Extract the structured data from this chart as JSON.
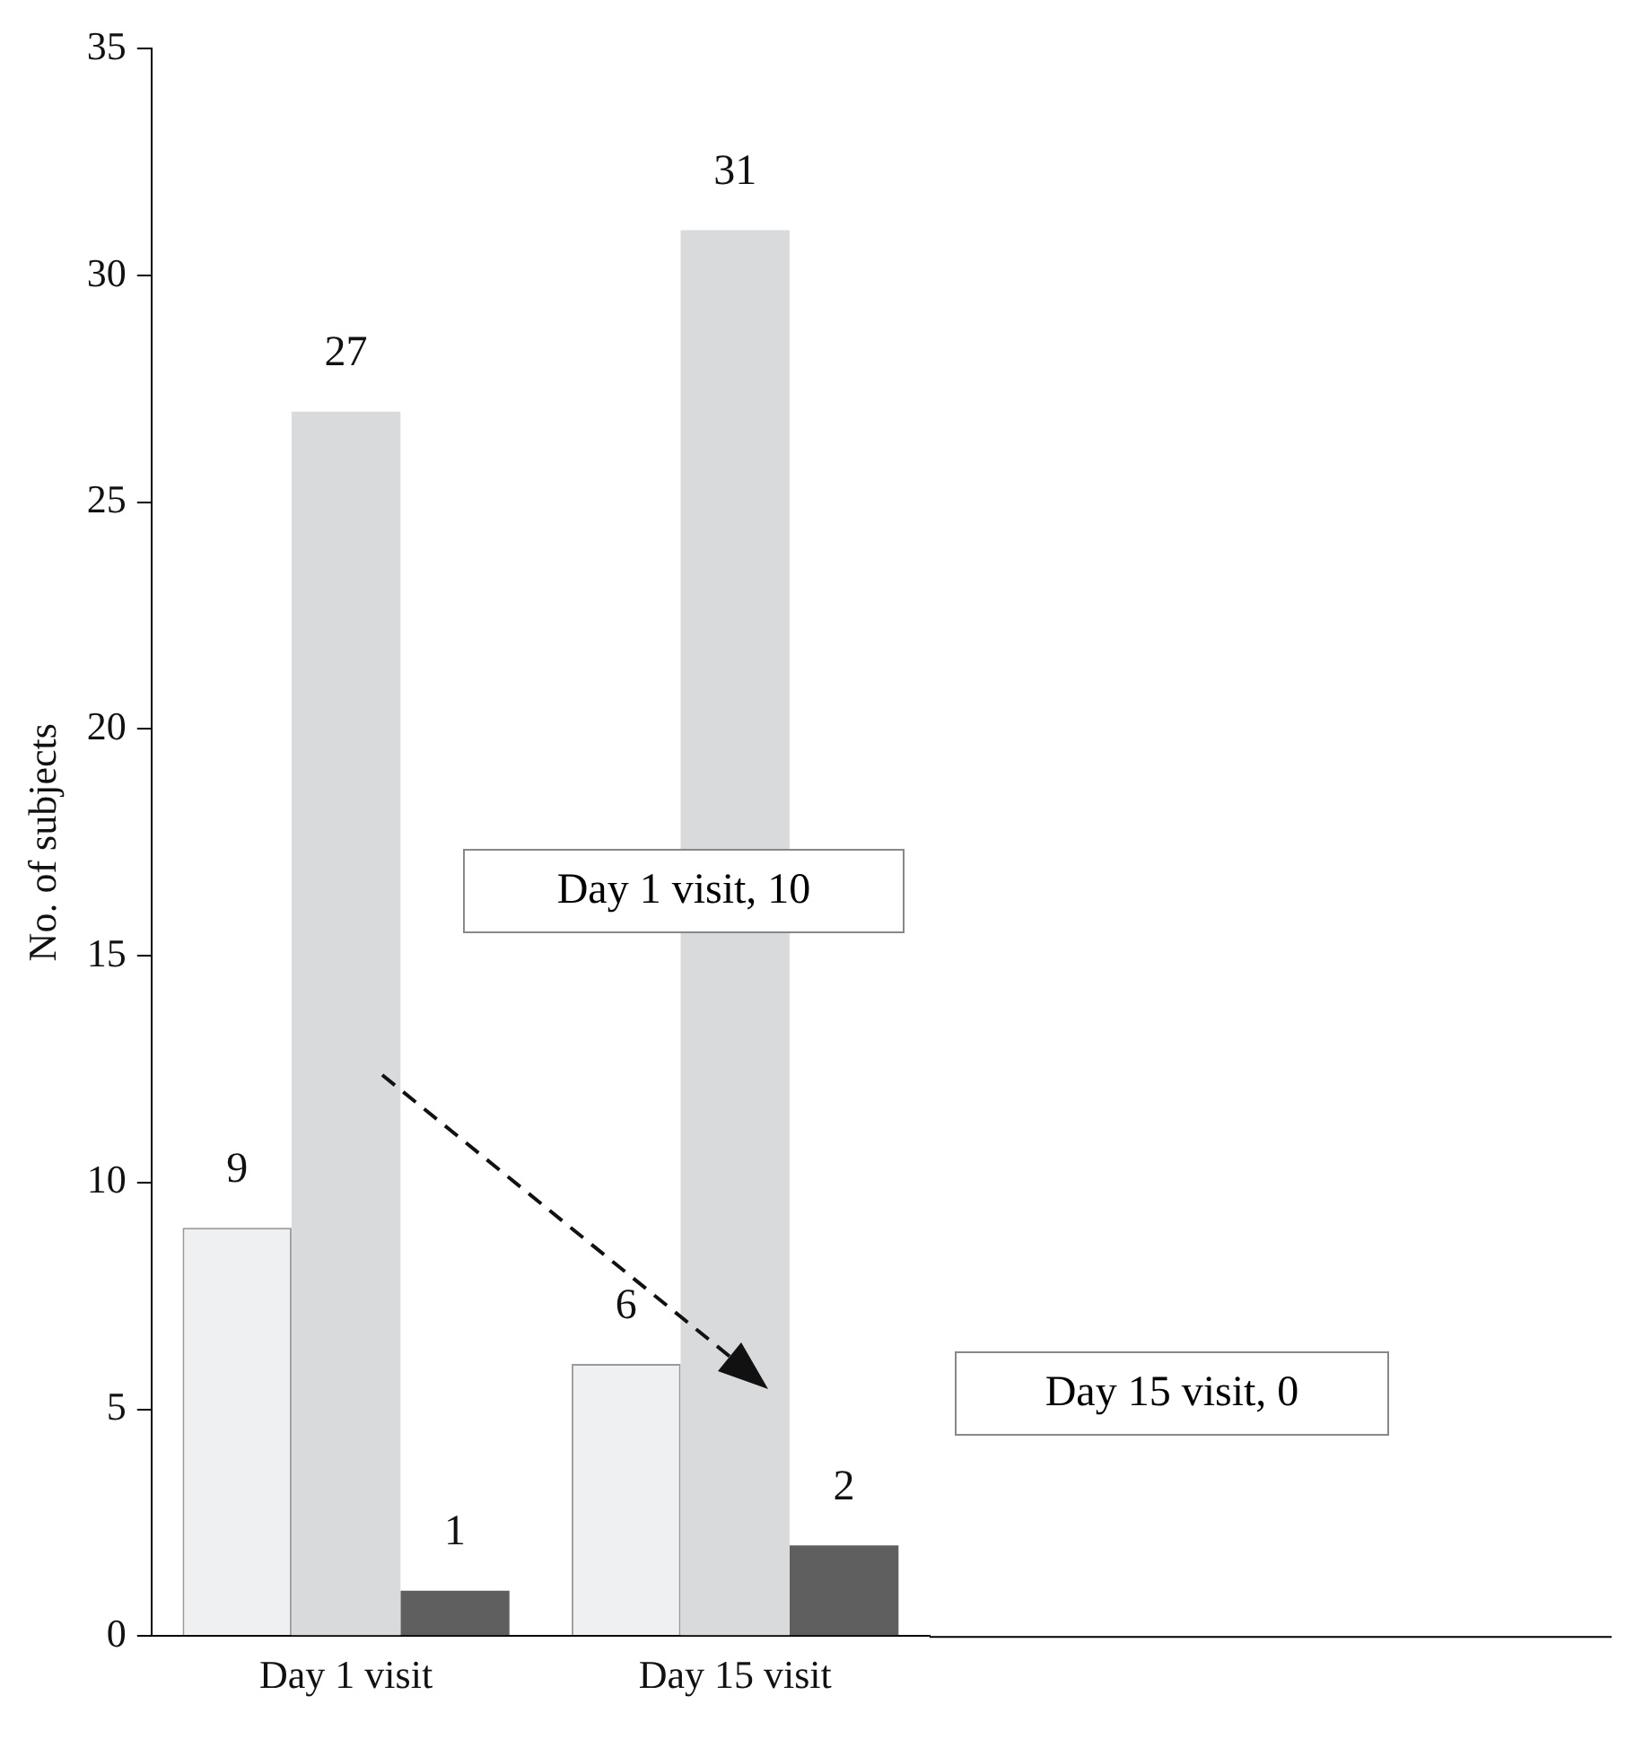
{
  "chart_data": {
    "type": "bar",
    "ylabel": "No. of subjects",
    "categories": [
      "Day 1 visit",
      "Day 15 visit"
    ],
    "series": [
      {
        "color": "#eff0f2",
        "values": [
          9,
          6
        ]
      },
      {
        "color": "#d9dadc",
        "values": [
          27,
          31
        ]
      },
      {
        "color": "#5f5f5f",
        "values": [
          1,
          2
        ]
      }
    ],
    "ylim": [
      0,
      35
    ],
    "yticks": [
      0,
      5,
      10,
      15,
      20,
      25,
      30,
      35
    ],
    "data_labels": true,
    "annotations": [
      "Day 1 visit, 10",
      "Day 15 visit, 0"
    ]
  }
}
